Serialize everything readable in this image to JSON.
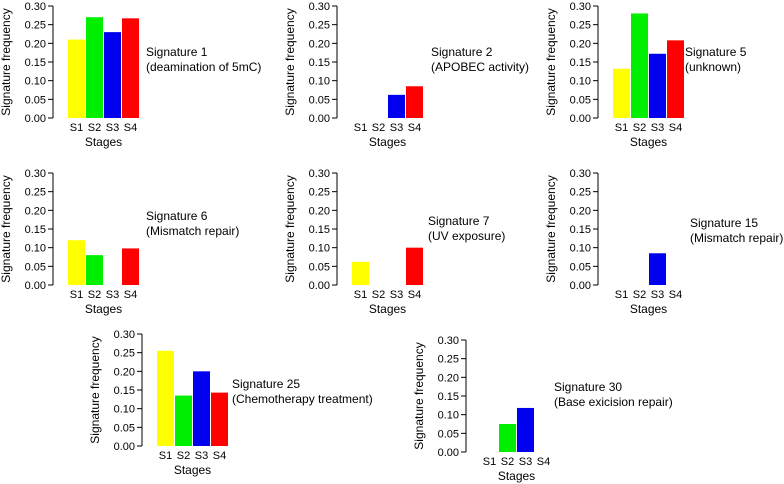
{
  "chart_data": [
    {
      "type": "bar",
      "categories": [
        "S1",
        "S2",
        "S3",
        "S4"
      ],
      "values": [
        0.21,
        0.27,
        0.23,
        0.267
      ],
      "ylabel": "Signature frequency",
      "xlabel": "Stages",
      "ylim": [
        0,
        0.3
      ],
      "yticks": [
        "0.00",
        "0.05",
        "0.10",
        "0.15",
        "0.20",
        "0.25",
        "0.30"
      ],
      "annotation": [
        "Signature 1",
        "(deamination of 5mC)"
      ]
    },
    {
      "type": "bar",
      "categories": [
        "S1",
        "S2",
        "S3",
        "S4"
      ],
      "values": [
        0,
        0,
        0.062,
        0.085
      ],
      "ylabel": "Signature frequency",
      "xlabel": "Stages",
      "ylim": [
        0,
        0.3
      ],
      "yticks": [
        "0.00",
        "0.05",
        "0.10",
        "0.15",
        "0.20",
        "0.25",
        "0.30"
      ],
      "annotation": [
        "Signature 2",
        "(APOBEC activity)"
      ]
    },
    {
      "type": "bar",
      "categories": [
        "S1",
        "S2",
        "S3",
        "S4"
      ],
      "values": [
        0.132,
        0.28,
        0.172,
        0.208
      ],
      "ylabel": "Signature frequency",
      "xlabel": "Stages",
      "ylim": [
        0,
        0.3
      ],
      "yticks": [
        "0.00",
        "0.05",
        "0.10",
        "0.15",
        "0.20",
        "0.25",
        "0.30"
      ],
      "annotation": [
        "Signature 5",
        "(unknown)"
      ]
    },
    {
      "type": "bar",
      "categories": [
        "S1",
        "S2",
        "S3",
        "S4"
      ],
      "values": [
        0.12,
        0.08,
        0,
        0.098
      ],
      "ylabel": "Signature frequency",
      "xlabel": "Stages",
      "ylim": [
        0,
        0.3
      ],
      "yticks": [
        "0.00",
        "0.05",
        "0.10",
        "0.15",
        "0.20",
        "0.25",
        "0.30"
      ],
      "annotation": [
        "Signature 6",
        "(Mismatch repair)"
      ]
    },
    {
      "type": "bar",
      "categories": [
        "S1",
        "S2",
        "S3",
        "S4"
      ],
      "values": [
        0.062,
        0,
        0,
        0.1
      ],
      "ylabel": "Signature frequency",
      "xlabel": "Stages",
      "ylim": [
        0,
        0.3
      ],
      "yticks": [
        "0.00",
        "0.05",
        "0.10",
        "0.15",
        "0.20",
        "0.25",
        "0.30"
      ],
      "annotation": [
        "Signature 7",
        "(UV exposure)"
      ]
    },
    {
      "type": "bar",
      "categories": [
        "S1",
        "S2",
        "S3",
        "S4"
      ],
      "values": [
        0,
        0,
        0.085,
        0
      ],
      "ylabel": "Signature frequency",
      "xlabel": "Stages",
      "ylim": [
        0,
        0.3
      ],
      "yticks": [
        "0.00",
        "0.05",
        "0.10",
        "0.15",
        "0.20",
        "0.25",
        "0.30"
      ],
      "annotation": [
        "Signature 15",
        "(Mismatch repair)"
      ]
    },
    {
      "type": "bar",
      "categories": [
        "S1",
        "S2",
        "S3",
        "S4"
      ],
      "values": [
        0.255,
        0.135,
        0.2,
        0.143
      ],
      "ylabel": "Signature frequency",
      "xlabel": "Stages",
      "ylim": [
        0,
        0.3
      ],
      "yticks": [
        "0.00",
        "0.05",
        "0.10",
        "0.15",
        "0.20",
        "0.25",
        "0.30"
      ],
      "annotation": [
        "Signature 25",
        "(Chemotherapy treatment)"
      ]
    },
    {
      "type": "bar",
      "categories": [
        "S1",
        "S2",
        "S3",
        "S4"
      ],
      "values": [
        0,
        0.075,
        0.118,
        0
      ],
      "ylabel": "Signature frequency",
      "xlabel": "Stages",
      "ylim": [
        0,
        0.3
      ],
      "yticks": [
        "0.00",
        "0.05",
        "0.10",
        "0.15",
        "0.20",
        "0.25",
        "0.30"
      ],
      "annotation": [
        "Signature 30",
        "(Base exicision repair)"
      ]
    }
  ],
  "colors": {
    "S1": "#ffff00",
    "S2": "#00ee00",
    "S3": "#0000ee",
    "S4": "#ff0000"
  }
}
